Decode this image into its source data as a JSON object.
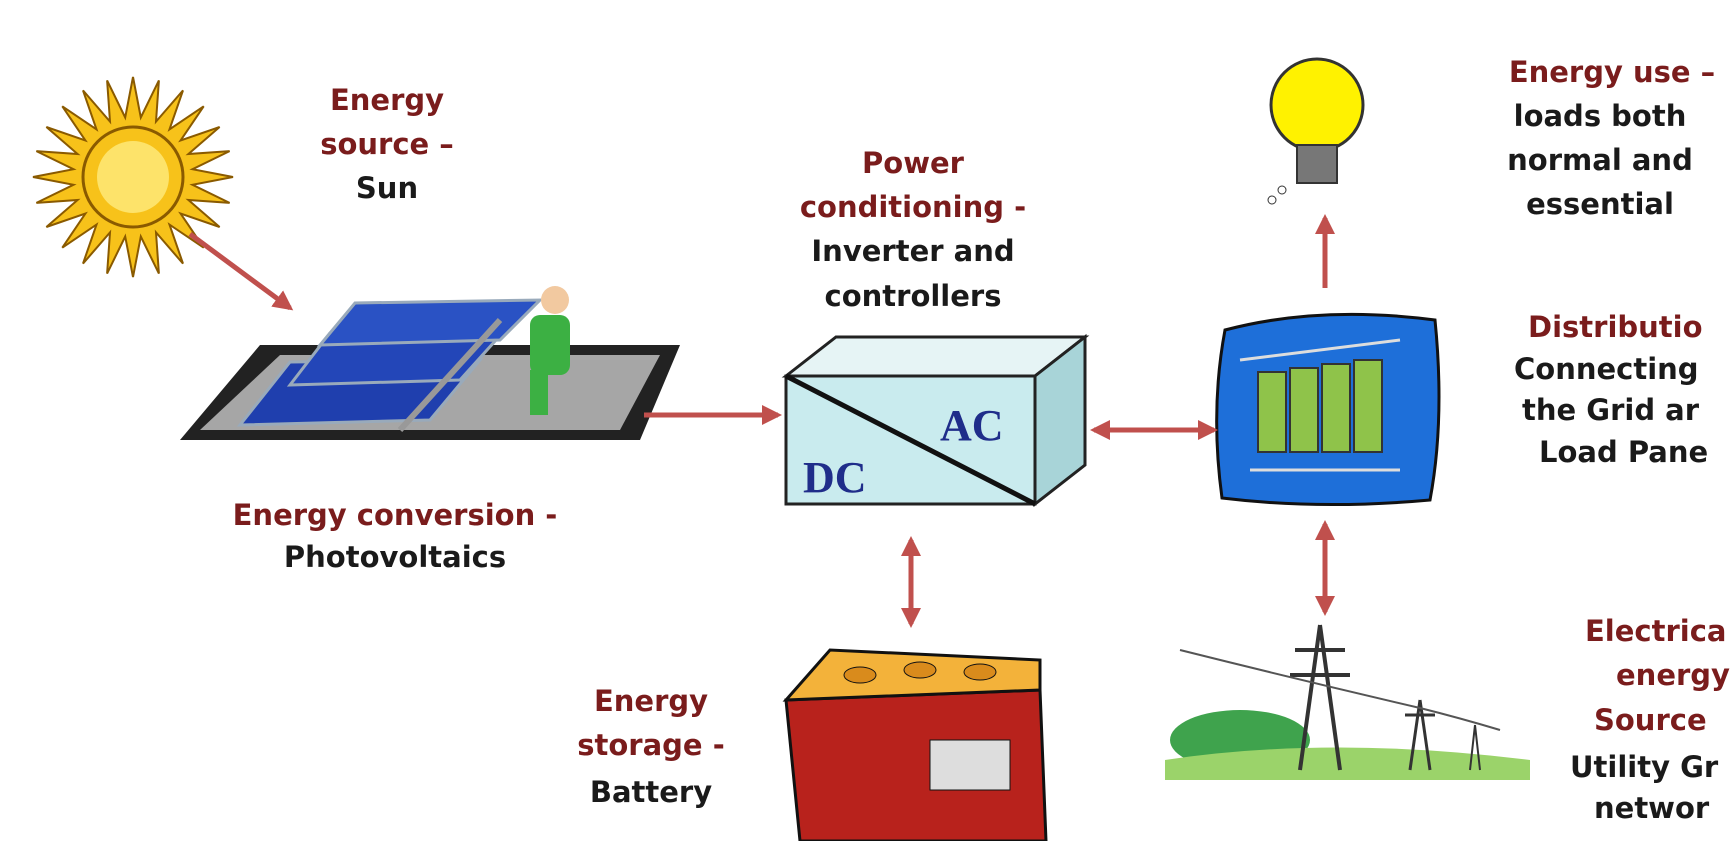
{
  "nodes": [
    {
      "title": [
        "Energy",
        "source –"
      ],
      "desc": [
        "Sun"
      ]
    },
    {
      "title": [
        "Energy conversion -"
      ],
      "desc": [
        "Photovoltaics"
      ]
    },
    {
      "title": [
        "Power",
        "conditioning -"
      ],
      "desc": [
        "Inverter and",
        "controllers"
      ]
    },
    {
      "title": [
        "Energy use –"
      ],
      "desc": [
        "loads both",
        "normal and",
        "essential"
      ]
    },
    {
      "title": [
        "Distributio"
      ],
      "desc": [
        "Connecting",
        "the Grid ar",
        "Load Pane"
      ]
    },
    {
      "title": [
        "Energy",
        "storage -"
      ],
      "desc": [
        "Battery"
      ]
    },
    {
      "title": [
        "Electrica",
        "energy",
        "Source"
      ],
      "desc": [
        "Utility Gr",
        "networ"
      ]
    }
  ],
  "inverter": {
    "ac": "AC",
    "dc": "DC"
  }
}
